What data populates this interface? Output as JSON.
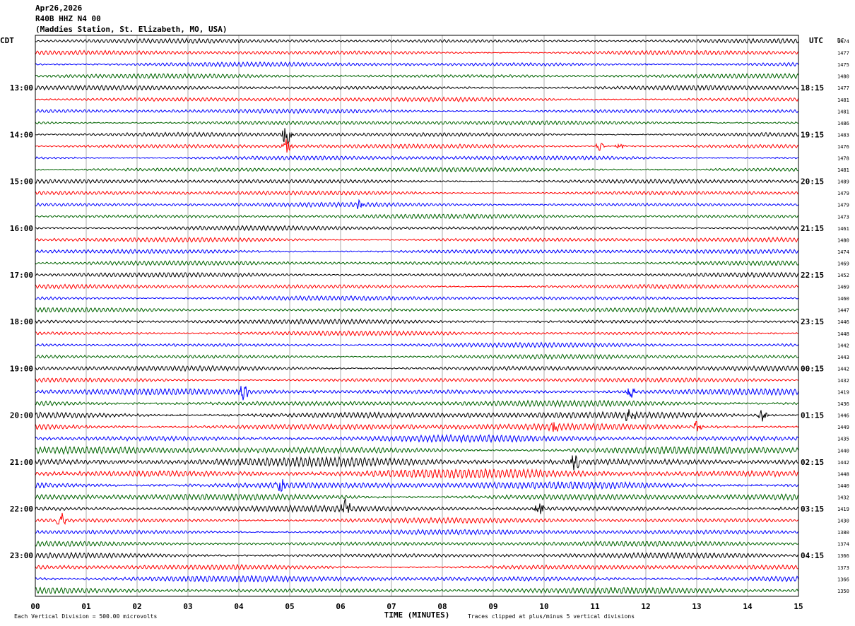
{
  "header": {
    "date": "Apr26,2026",
    "channel": "R40B HHZ N4 00",
    "station": "(Maddies Station, St. Elizabeth, MO, USA)"
  },
  "chart_data": {
    "type": "helicorder",
    "left_zone_label": "CDT",
    "right_zone_label": "UTC",
    "right_column_label": "DC",
    "xlabel": "TIME (MINUTES)",
    "x_ticks": [
      "00",
      "01",
      "02",
      "03",
      "04",
      "05",
      "06",
      "07",
      "08",
      "09",
      "10",
      "11",
      "12",
      "13",
      "14",
      "15"
    ],
    "xlim": [
      0,
      15
    ],
    "minutes_per_line": 15,
    "trace_colors": [
      "#000000",
      "#ff0000",
      "#0000ff",
      "#006400"
    ],
    "left_hour_labels": [
      {
        "line": 4,
        "text": "13:00"
      },
      {
        "line": 8,
        "text": "14:00"
      },
      {
        "line": 12,
        "text": "15:00"
      },
      {
        "line": 16,
        "text": "16:00"
      },
      {
        "line": 20,
        "text": "17:00"
      },
      {
        "line": 24,
        "text": "18:00"
      },
      {
        "line": 28,
        "text": "19:00"
      },
      {
        "line": 32,
        "text": "20:00"
      },
      {
        "line": 36,
        "text": "21:00"
      },
      {
        "line": 40,
        "text": "22:00"
      },
      {
        "line": 44,
        "text": "23:00"
      }
    ],
    "right_hour_labels": [
      {
        "line": 4,
        "text": "18:15"
      },
      {
        "line": 8,
        "text": "19:15"
      },
      {
        "line": 12,
        "text": "20:15"
      },
      {
        "line": 16,
        "text": "21:15"
      },
      {
        "line": 20,
        "text": "22:15"
      },
      {
        "line": 24,
        "text": "23:15"
      },
      {
        "line": 28,
        "text": "00:15"
      },
      {
        "line": 32,
        "text": "01:15"
      },
      {
        "line": 36,
        "text": "02:15"
      },
      {
        "line": 40,
        "text": "03:15"
      },
      {
        "line": 44,
        "text": "04:15"
      }
    ],
    "dc_offsets": [
      1474,
      1477,
      1475,
      1480,
      1477,
      1481,
      1481,
      1486,
      1483,
      1476,
      1478,
      1481,
      1489,
      1479,
      1479,
      1473,
      1461,
      1480,
      1474,
      1469,
      1452,
      1469,
      1460,
      1447,
      1446,
      1448,
      1442,
      1443,
      1442,
      1432,
      1419,
      1436,
      1446,
      1449,
      1435,
      1440,
      1442,
      1448,
      1440,
      1432,
      1419,
      1430,
      1380,
      1374,
      1366,
      1373,
      1366,
      1350
    ],
    "amplitude_levels": [
      3,
      3,
      3,
      3,
      3,
      3,
      3,
      3,
      3,
      3,
      3,
      3,
      3,
      3,
      3,
      3,
      3,
      3,
      3,
      3,
      3,
      3,
      3,
      3,
      3,
      3,
      3,
      3,
      3.5,
      3,
      4,
      4,
      4.5,
      4.5,
      4.5,
      5,
      6,
      6,
      5,
      4.5,
      4,
      3.5,
      3.5,
      3.5,
      3.5,
      3.5,
      4,
      4
    ],
    "events": [
      {
        "line": 8,
        "minute": 4.95,
        "amplitude": 30
      },
      {
        "line": 9,
        "minute": 4.95,
        "amplitude": 12
      },
      {
        "line": 9,
        "minute": 11.1,
        "amplitude": 8
      },
      {
        "line": 9,
        "minute": 11.5,
        "amplitude": 6
      },
      {
        "line": 14,
        "minute": 6.4,
        "amplitude": 8
      },
      {
        "line": 30,
        "minute": 4.1,
        "amplitude": 14
      },
      {
        "line": 30,
        "minute": 11.7,
        "amplitude": 10
      },
      {
        "line": 32,
        "minute": 11.7,
        "amplitude": 14
      },
      {
        "line": 32,
        "minute": 14.3,
        "amplitude": 14
      },
      {
        "line": 33,
        "minute": 13.0,
        "amplitude": 10
      },
      {
        "line": 33,
        "minute": 10.2,
        "amplitude": 10
      },
      {
        "line": 36,
        "minute": 10.6,
        "amplitude": 12
      },
      {
        "line": 38,
        "minute": 4.8,
        "amplitude": 12
      },
      {
        "line": 40,
        "minute": 6.1,
        "amplitude": 12
      },
      {
        "line": 40,
        "minute": 9.9,
        "amplitude": 12
      },
      {
        "line": 41,
        "minute": 0.5,
        "amplitude": 14
      }
    ],
    "footer_left": "Each Vertical Division =  500.00 microvolts",
    "footer_right": "Traces clipped at plus/minus 5 vertical divisions"
  }
}
